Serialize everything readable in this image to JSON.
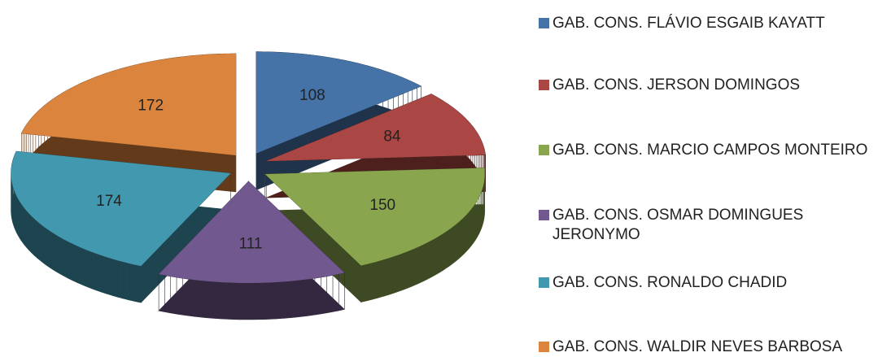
{
  "chart_data": {
    "type": "pie3d",
    "categories": [
      "GAB. CONS. FLÁVIO ESGAIB KAYATT",
      "GAB. CONS. JERSON DOMINGOS",
      "GAB. CONS. MARCIO CAMPOS MONTEIRO",
      "GAB. CONS. OSMAR DOMINGUES JERONYMO",
      "GAB. CONS. RONALDO CHADID",
      "GAB. CONS. WALDIR NEVES BARBOSA"
    ],
    "values": [
      108,
      84,
      150,
      111,
      174,
      172
    ],
    "colors": [
      "#4572a7",
      "#aa4643",
      "#89a54e",
      "#71588f",
      "#4198af",
      "#db843d"
    ],
    "legend": "right"
  }
}
